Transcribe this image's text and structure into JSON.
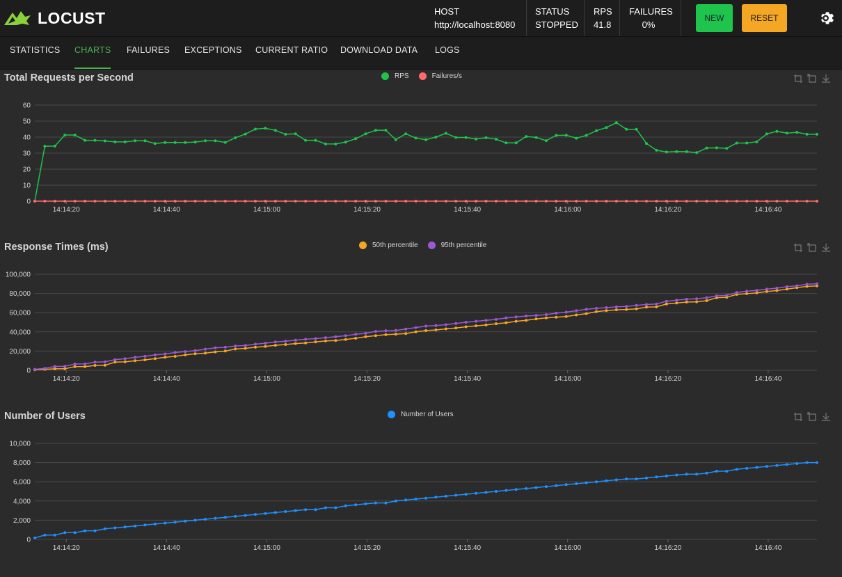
{
  "header": {
    "logo_text": "LOCUST",
    "host_label": "HOST",
    "host_value": "http://localhost:8080",
    "status_label": "STATUS",
    "status_value": "STOPPED",
    "rps_label": "RPS",
    "rps_value": "41.8",
    "failures_label": "FAILURES",
    "failures_value": "0%",
    "new_button": "NEW",
    "reset_button": "RESET"
  },
  "tabs": [
    "STATISTICS",
    "CHARTS",
    "FAILURES",
    "EXCEPTIONS",
    "CURRENT RATIO",
    "DOWNLOAD DATA",
    "LOGS"
  ],
  "active_tab": "CHARTS",
  "colors": {
    "rps": "#1fc44c",
    "failures": "#ff6b6b",
    "p50": "#f5a623",
    "p95": "#9b59d6",
    "users": "#1e90ff",
    "grid": "#4a4a4a"
  },
  "chart_data": [
    {
      "type": "line",
      "title": "Total Requests per Second",
      "x_ticks": [
        "14:14:20",
        "14:14:40",
        "14:15:00",
        "14:15:20",
        "14:15:40",
        "14:16:00",
        "14:16:20",
        "14:16:40"
      ],
      "ylim": [
        0,
        60
      ],
      "y_ticks": [
        "0",
        "10",
        "20",
        "30",
        "40",
        "50",
        "60"
      ],
      "legend": "top-center",
      "series": [
        {
          "name": "RPS",
          "color": "#1fc44c",
          "values": [
            0,
            34.3,
            34.4,
            41.3,
            41.3,
            38.0,
            38.0,
            37.6,
            37.0,
            37.0,
            37.7,
            37.7,
            36.0,
            36.6,
            36.6,
            36.6,
            36.9,
            37.7,
            37.7,
            36.7,
            39.6,
            41.9,
            45.0,
            45.5,
            44.2,
            41.8,
            42.1,
            38.0,
            38.0,
            35.8,
            35.7,
            36.9,
            39.0,
            42.1,
            44.3,
            44.3,
            38.4,
            42.1,
            39.4,
            38.4,
            40.0,
            42.4,
            39.8,
            39.8,
            38.8,
            39.6,
            38.7,
            36.4,
            36.4,
            40.4,
            39.8,
            37.8,
            41.1,
            41.2,
            39.3,
            41.1,
            44.0,
            46.0,
            49.0,
            44.9,
            44.9,
            36.0,
            31.8,
            30.7,
            31.0,
            30.9,
            30.3,
            33.2,
            33.3,
            33.0,
            36.3,
            36.3,
            37.1,
            42.0,
            43.6,
            42.5,
            43.0,
            41.8,
            41.8
          ]
        },
        {
          "name": "Failures/s",
          "color": "#ff6b6b",
          "values": [
            0,
            0,
            0,
            0,
            0,
            0,
            0,
            0,
            0,
            0,
            0,
            0,
            0,
            0,
            0,
            0,
            0,
            0,
            0,
            0,
            0,
            0,
            0,
            0,
            0,
            0,
            0,
            0,
            0,
            0,
            0,
            0,
            0,
            0,
            0,
            0,
            0,
            0,
            0,
            0,
            0,
            0,
            0,
            0,
            0,
            0,
            0,
            0,
            0,
            0,
            0,
            0,
            0,
            0,
            0,
            0,
            0,
            0,
            0,
            0,
            0,
            0,
            0,
            0,
            0,
            0,
            0,
            0,
            0,
            0,
            0,
            0,
            0,
            0,
            0,
            0,
            0,
            0,
            0
          ]
        }
      ]
    },
    {
      "type": "line",
      "title": "Response Times (ms)",
      "x_ticks": [
        "14:14:20",
        "14:14:40",
        "14:15:00",
        "14:15:20",
        "14:15:40",
        "14:16:00",
        "14:16:20",
        "14:16:40"
      ],
      "ylim": [
        0,
        100000
      ],
      "y_ticks": [
        "0",
        "20,000",
        "40,000",
        "60,000",
        "80,000",
        "100,000"
      ],
      "legend": "top-center",
      "series": [
        {
          "name": "50th percentile",
          "color": "#f5a623",
          "values": [
            500,
            1000,
            1500,
            1600,
            3800,
            3800,
            5100,
            5200,
            8500,
            8800,
            10000,
            10900,
            12200,
            13600,
            14500,
            16000,
            17200,
            17800,
            19100,
            20000,
            22200,
            22800,
            24000,
            24800,
            26000,
            26800,
            27800,
            28500,
            29500,
            30500,
            31000,
            32000,
            33300,
            35000,
            36000,
            37000,
            37600,
            38200,
            40000,
            41300,
            42000,
            43100,
            44000,
            45300,
            46300,
            47200,
            48500,
            49500,
            51000,
            52000,
            53500,
            54500,
            55200,
            56000,
            57600,
            59000,
            61000,
            62200,
            63000,
            63300,
            64000,
            65800,
            66000,
            69000,
            70000,
            71000,
            71300,
            72500,
            75500,
            76000,
            79000,
            79800,
            80500,
            82000,
            83000,
            84500,
            86000,
            87300,
            87800
          ]
        },
        {
          "name": "95th percentile",
          "color": "#9b59d6",
          "values": [
            1000,
            2000,
            4000,
            4200,
            6500,
            6600,
            8500,
            8800,
            11000,
            12000,
            13500,
            14600,
            16000,
            17000,
            18500,
            19500,
            20500,
            22000,
            23300,
            24000,
            25300,
            25800,
            27200,
            28200,
            29500,
            30200,
            31300,
            32300,
            33000,
            34000,
            35000,
            36000,
            37500,
            38500,
            40500,
            41200,
            41500,
            43000,
            44500,
            46000,
            46500,
            47500,
            48800,
            50000,
            51000,
            52000,
            53000,
            54500,
            55500,
            56500,
            57000,
            58000,
            59500,
            60500,
            62000,
            63500,
            64500,
            65200,
            66000,
            66500,
            67500,
            68500,
            69000,
            71800,
            73000,
            74000,
            74500,
            75500,
            77500,
            78000,
            81000,
            82300,
            83200,
            84500,
            85500,
            87000,
            88000,
            89600,
            90000
          ]
        }
      ]
    },
    {
      "type": "line",
      "title": "Number of Users",
      "x_ticks": [
        "14:14:20",
        "14:14:40",
        "14:15:00",
        "14:15:20",
        "14:15:40",
        "14:16:00",
        "14:16:20",
        "14:16:40"
      ],
      "ylim": [
        0,
        10000
      ],
      "y_ticks": [
        "0",
        "2,000",
        "4,000",
        "6,000",
        "8,000",
        "10,000"
      ],
      "legend": "top-center",
      "series": [
        {
          "name": "Number of Users",
          "color": "#1e90ff",
          "values": [
            150,
            450,
            450,
            700,
            700,
            900,
            900,
            1100,
            1200,
            1300,
            1400,
            1500,
            1600,
            1700,
            1800,
            1900,
            2000,
            2100,
            2200,
            2300,
            2400,
            2500,
            2600,
            2700,
            2800,
            2900,
            3000,
            3100,
            3100,
            3300,
            3300,
            3500,
            3600,
            3700,
            3800,
            3800,
            4000,
            4100,
            4200,
            4300,
            4400,
            4500,
            4600,
            4700,
            4800,
            4900,
            5000,
            5100,
            5200,
            5300,
            5400,
            5500,
            5600,
            5700,
            5800,
            5900,
            6000,
            6100,
            6200,
            6300,
            6300,
            6400,
            6500,
            6600,
            6700,
            6800,
            6800,
            6900,
            7100,
            7100,
            7300,
            7400,
            7500,
            7600,
            7700,
            7800,
            7900,
            8000,
            8000
          ]
        }
      ]
    }
  ]
}
